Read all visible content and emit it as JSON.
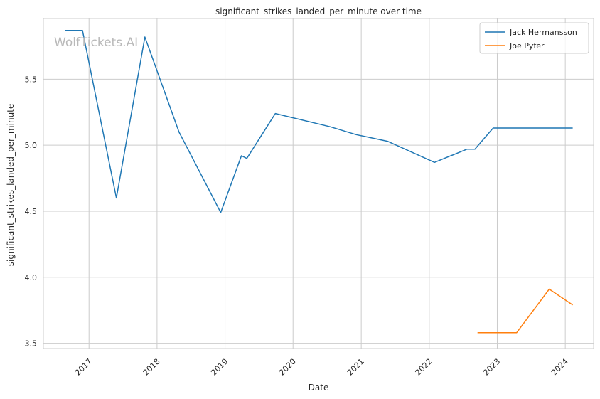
{
  "chart_data": {
    "type": "line",
    "title": "significant_strikes_landed_per_minute over time",
    "xlabel": "Date",
    "ylabel": "significant_strikes_landed_per_minute",
    "xlim": [
      "2016-05-01",
      "2024-06-01"
    ],
    "ylim": [
      3.46,
      5.96
    ],
    "x_ticks": [
      "2017",
      "2018",
      "2019",
      "2020",
      "2021",
      "2022",
      "2023",
      "2024"
    ],
    "y_ticks": [
      "3.5",
      "4.0",
      "4.5",
      "5.0",
      "5.5"
    ],
    "grid": true,
    "legend_position": "top-right",
    "watermark": "WolfTickets.AI",
    "series": [
      {
        "name": "Jack Hermansson",
        "color": "#1f77b4",
        "points": [
          {
            "x": "2016-08-27",
            "y": 5.87
          },
          {
            "x": "2016-11-27",
            "y": 5.87
          },
          {
            "x": "2017-05-28",
            "y": 4.6
          },
          {
            "x": "2017-10-28",
            "y": 5.82
          },
          {
            "x": "2018-04-29",
            "y": 5.1
          },
          {
            "x": "2018-12-09",
            "y": 4.49
          },
          {
            "x": "2019-03-30",
            "y": 4.92
          },
          {
            "x": "2019-04-28",
            "y": 4.9
          },
          {
            "x": "2019-09-28",
            "y": 5.24
          },
          {
            "x": "2020-07-18",
            "y": 5.14
          },
          {
            "x": "2020-12-05",
            "y": 5.08
          },
          {
            "x": "2021-05-22",
            "y": 5.03
          },
          {
            "x": "2022-01-29",
            "y": 4.87
          },
          {
            "x": "2022-07-23",
            "y": 4.97
          },
          {
            "x": "2022-09-03",
            "y": 4.97
          },
          {
            "x": "2022-12-10",
            "y": 5.13
          },
          {
            "x": "2023-10-14",
            "y": 5.13
          },
          {
            "x": "2024-02-10",
            "y": 5.13
          }
        ]
      },
      {
        "name": "Joe Pyfer",
        "color": "#ff7f0e",
        "points": [
          {
            "x": "2022-09-17",
            "y": 3.58
          },
          {
            "x": "2023-04-15",
            "y": 3.58
          },
          {
            "x": "2023-10-07",
            "y": 3.91
          },
          {
            "x": "2024-02-10",
            "y": 3.79
          }
        ]
      }
    ]
  }
}
